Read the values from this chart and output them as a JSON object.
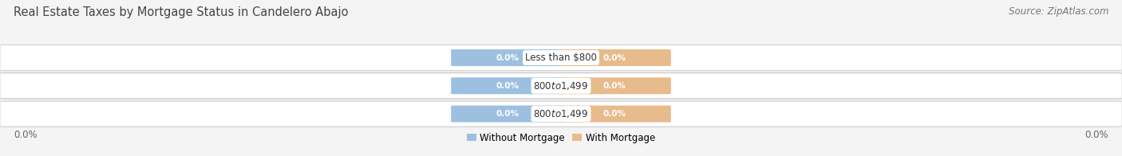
{
  "title": "Real Estate Taxes by Mortgage Status in Candelero Abajo",
  "source": "Source: ZipAtlas.com",
  "categories": [
    "Less than $800",
    "$800 to $1,499",
    "$800 to $1,499"
  ],
  "without_mortgage": [
    0.0,
    0.0,
    0.0
  ],
  "with_mortgage": [
    0.0,
    0.0,
    0.0
  ],
  "bar_color_without": "#9ec0e0",
  "bar_color_with": "#e8bb8c",
  "legend_without": "Without Mortgage",
  "legend_with": "With Mortgage",
  "axis_label_left": "0.0%",
  "axis_label_right": "0.0%",
  "title_fontsize": 10.5,
  "source_fontsize": 8.5,
  "tick_fontsize": 8.5,
  "category_fontsize": 8.5,
  "value_fontsize": 7.5,
  "row_bg_light": "#efefef",
  "row_bg_dark": "#e5e5e5",
  "background_color": "#f4f4f4",
  "figsize": [
    14.06,
    1.96
  ],
  "dpi": 100
}
